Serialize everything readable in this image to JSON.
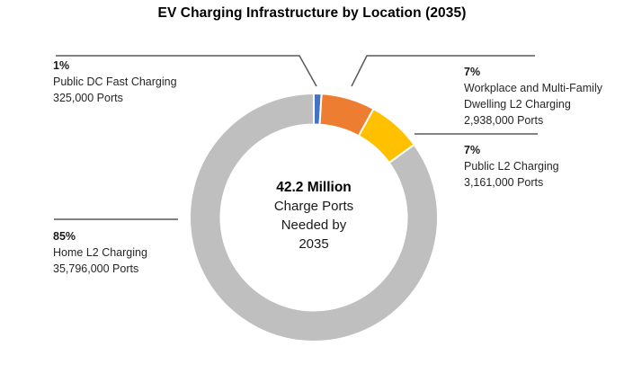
{
  "title": "EV Charging Infrastructure by Location (2035)",
  "chart_data": {
    "type": "pie",
    "subtype": "donut",
    "title": "EV Charging Infrastructure by Location (2035)",
    "categories": [
      "Public DC Fast Charging",
      "Workplace and Multi-Family Dwelling L2 Charging",
      "Public L2 Charging",
      "Home L2 Charging"
    ],
    "segment_ids": [
      "public-dc-fast",
      "workplace-multifamily-l2",
      "public-l2",
      "home-l2"
    ],
    "values_percent": [
      1,
      7,
      7,
      85
    ],
    "values_ports": [
      325000,
      2938000,
      3161000,
      35796000
    ],
    "colors": [
      "#4472C4",
      "#ED7D31",
      "#FFC000",
      "#BFBFBF"
    ],
    "center_label": [
      "42.2 Million",
      "Charge Ports",
      "Needed by",
      "2035"
    ],
    "donut_hole_ratio": 0.75,
    "start_angle_deg": 0,
    "legend": "none (callout labels with leader lines)"
  },
  "center": {
    "headline": "42.2 Million",
    "line2": "Charge Ports",
    "line3": "Needed by",
    "line4": "2035"
  },
  "callouts": [
    {
      "pct": "1%",
      "name": "Public DC Fast Charging",
      "ports": "325,000 Ports"
    },
    {
      "pct": "7%",
      "name_line1": "Workplace and Multi-Family",
      "name_line2": "Dwelling L2 Charging",
      "ports": "2,938,000 Ports"
    },
    {
      "pct": "7%",
      "name": "Public L2 Charging",
      "ports": "3,161,000 Ports"
    },
    {
      "pct": "85%",
      "name": "Home L2 Charging",
      "ports": "35,796,000 Ports"
    }
  ],
  "colors": {
    "leader_line": "#595959",
    "segment_border": "#ffffff",
    "text": "#262626",
    "title_text": "#000000"
  }
}
